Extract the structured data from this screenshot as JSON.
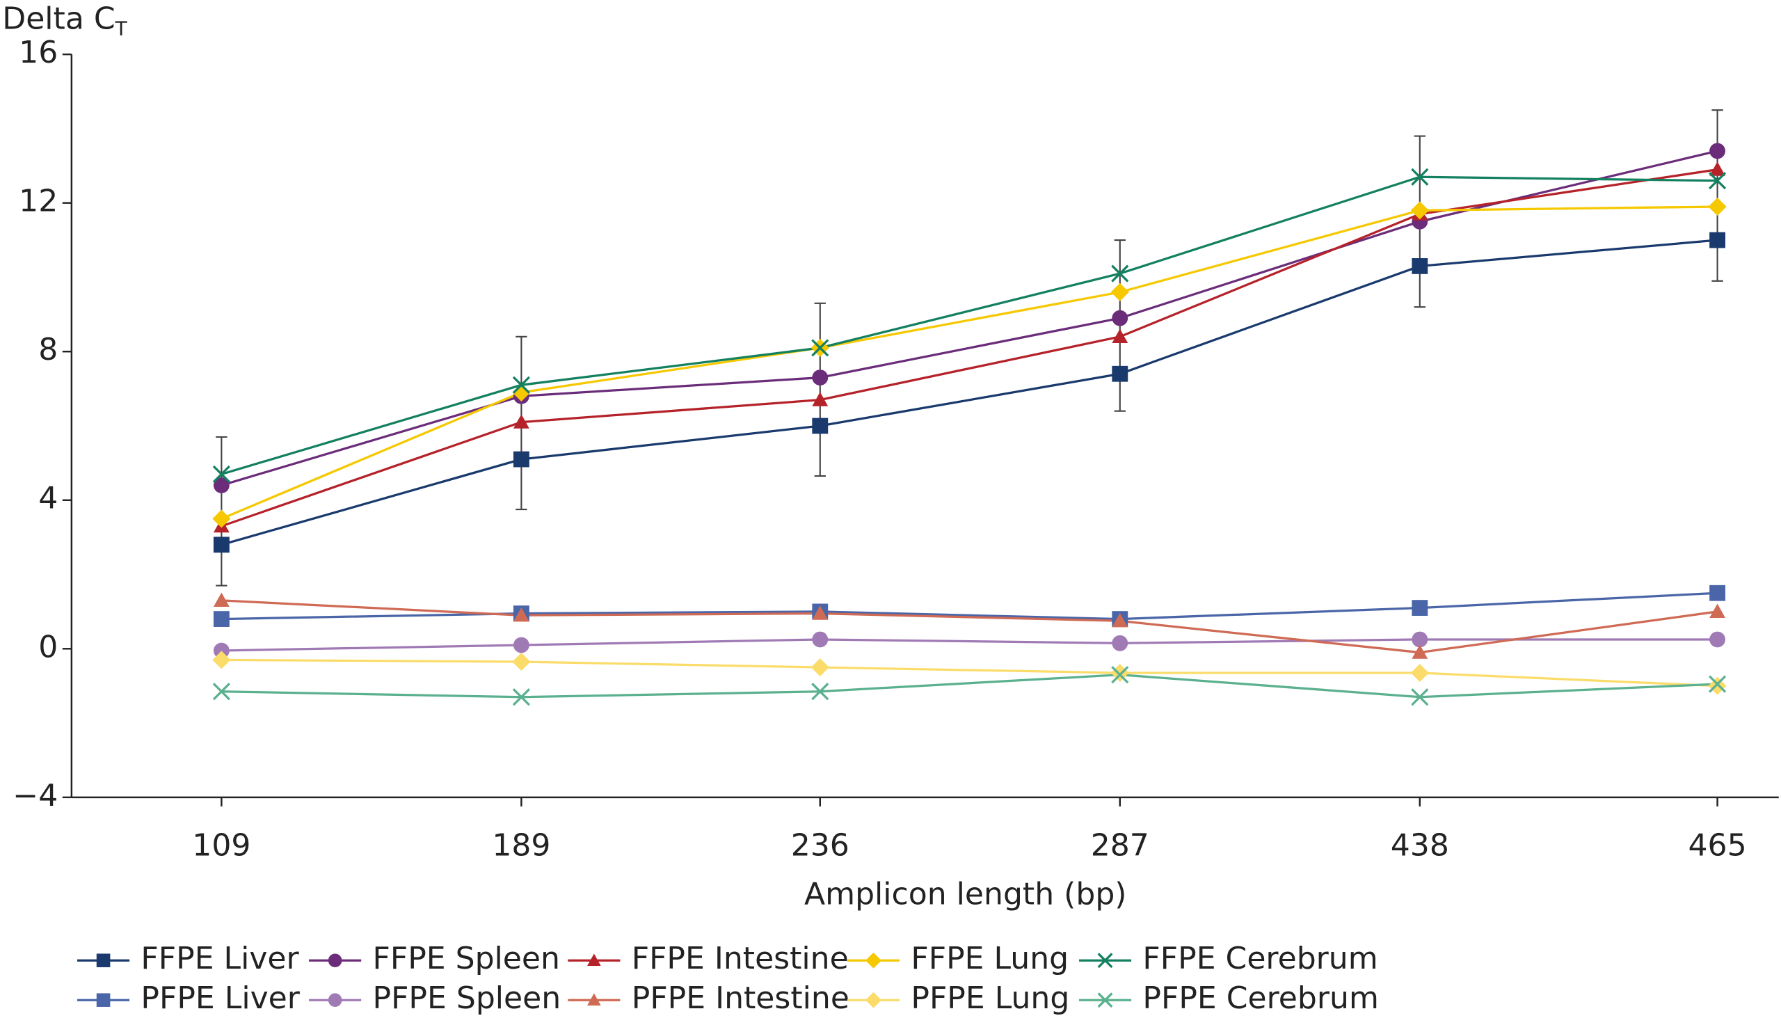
{
  "chart_data": {
    "type": "line",
    "ylabel": "Delta C",
    "ylabel_subscript": "T",
    "xlabel": "Amplicon length (bp)",
    "categories": [
      "109",
      "189",
      "236",
      "287",
      "438",
      "465"
    ],
    "ylim": [
      -4,
      16
    ],
    "yticks": [
      {
        "value": -4,
        "label": "−4"
      },
      0,
      4,
      8,
      12,
      16
    ],
    "series": [
      {
        "name": "FFPE Liver",
        "color": "#1a3a6e",
        "marker": "square",
        "values": [
          2.8,
          5.1,
          6.0,
          7.4,
          10.3,
          11.0
        ]
      },
      {
        "name": "FFPE Spleen",
        "color": "#6b2d7a",
        "marker": "circle",
        "values": [
          4.4,
          6.8,
          7.3,
          8.9,
          11.5,
          13.4
        ]
      },
      {
        "name": "FFPE Intestine",
        "color": "#b5222a",
        "marker": "triangle",
        "values": [
          3.3,
          6.1,
          6.7,
          8.4,
          11.7,
          12.9
        ]
      },
      {
        "name": "FFPE Lung",
        "color": "#f5c800",
        "marker": "diamond",
        "values": [
          3.5,
          6.9,
          8.1,
          9.6,
          11.8,
          11.9
        ]
      },
      {
        "name": "FFPE Cerebrum",
        "color": "#138060",
        "marker": "x",
        "values": [
          4.7,
          7.1,
          8.1,
          10.1,
          12.7,
          12.6
        ]
      },
      {
        "name": "PFPE Liver",
        "color": "#4a66a8",
        "marker": "square",
        "values": [
          0.8,
          0.95,
          1.0,
          0.8,
          1.1,
          1.5
        ]
      },
      {
        "name": "PFPE Spleen",
        "color": "#a07ab5",
        "marker": "circle",
        "values": [
          -0.05,
          0.1,
          0.25,
          0.15,
          0.25,
          0.25
        ]
      },
      {
        "name": "PFPE Intestine",
        "color": "#cf6a55",
        "marker": "triangle",
        "values": [
          1.3,
          0.9,
          0.95,
          0.75,
          -0.1,
          1.0
        ]
      },
      {
        "name": "PFPE Lung",
        "color": "#fbdc6a",
        "marker": "diamond",
        "values": [
          -0.3,
          -0.35,
          -0.5,
          -0.65,
          -0.65,
          -1.0
        ]
      },
      {
        "name": "PFPE Cerebrum",
        "color": "#5ab08f",
        "marker": "x",
        "values": [
          -1.15,
          -1.3,
          -1.15,
          -0.7,
          -1.3,
          -0.95
        ]
      }
    ],
    "error_bars": {
      "high": [
        5.7,
        8.4,
        9.3,
        11.0,
        13.8,
        14.5
      ],
      "low": [
        1.7,
        3.75,
        4.65,
        6.4,
        9.2,
        9.9
      ]
    }
  }
}
